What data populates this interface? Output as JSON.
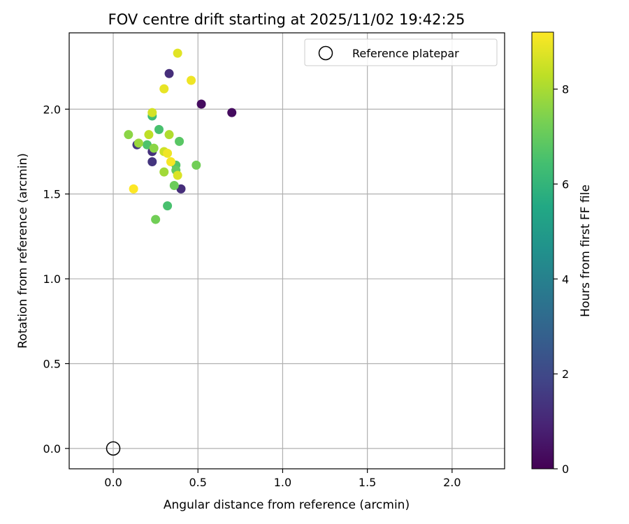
{
  "chart_data": {
    "type": "scatter",
    "title": "FOV centre drift starting at 2025/11/02 19:42:25",
    "xlabel": "Angular distance from reference (arcmin)",
    "ylabel": "Rotation from reference (arcmin)",
    "xlim": [
      -0.26,
      2.31
    ],
    "ylim": [
      -0.12,
      2.45
    ],
    "xticks": [
      0.0,
      0.5,
      1.0,
      1.5,
      2.0
    ],
    "xtick_labels": [
      "0.0",
      "0.5",
      "1.0",
      "1.5",
      "2.0"
    ],
    "yticks": [
      0.0,
      0.5,
      1.0,
      1.5,
      2.0
    ],
    "ytick_labels": [
      "0.0",
      "0.5",
      "1.0",
      "1.5",
      "2.0"
    ],
    "grid": true,
    "legend": {
      "location": "top-right",
      "entries": [
        "Reference platepar"
      ]
    },
    "reference_point": {
      "x": 0.0,
      "y": 0.0,
      "label": "Reference platepar"
    },
    "colorbar": {
      "label": "Hours from first FF file",
      "colormap": "viridis",
      "range": [
        0,
        9.2
      ],
      "ticks": [
        0,
        2,
        4,
        6,
        8
      ],
      "tick_labels": [
        "0",
        "2",
        "4",
        "6",
        "8"
      ]
    },
    "points": [
      {
        "x": 0.52,
        "y": 2.03,
        "hours": 0.3
      },
      {
        "x": 0.7,
        "y": 1.98,
        "hours": 0.3
      },
      {
        "x": 0.33,
        "y": 2.21,
        "hours": 1.2
      },
      {
        "x": 0.14,
        "y": 1.79,
        "hours": 1.5
      },
      {
        "x": 0.23,
        "y": 1.75,
        "hours": 1.3
      },
      {
        "x": 0.23,
        "y": 1.69,
        "hours": 1.4
      },
      {
        "x": 0.4,
        "y": 1.53,
        "hours": 1.2
      },
      {
        "x": 0.23,
        "y": 1.96,
        "hours": 6.3
      },
      {
        "x": 0.27,
        "y": 1.88,
        "hours": 6.5
      },
      {
        "x": 0.2,
        "y": 1.79,
        "hours": 6.6
      },
      {
        "x": 0.39,
        "y": 1.81,
        "hours": 6.8
      },
      {
        "x": 0.37,
        "y": 1.67,
        "hours": 6.7
      },
      {
        "x": 0.32,
        "y": 1.43,
        "hours": 6.5
      },
      {
        "x": 0.37,
        "y": 1.64,
        "hours": 7.0
      },
      {
        "x": 0.36,
        "y": 1.55,
        "hours": 7.1
      },
      {
        "x": 0.49,
        "y": 1.67,
        "hours": 7.2
      },
      {
        "x": 0.25,
        "y": 1.35,
        "hours": 7.2
      },
      {
        "x": 0.09,
        "y": 1.85,
        "hours": 7.6
      },
      {
        "x": 0.15,
        "y": 1.8,
        "hours": 7.8
      },
      {
        "x": 0.24,
        "y": 1.77,
        "hours": 7.6
      },
      {
        "x": 0.3,
        "y": 1.63,
        "hours": 7.9
      },
      {
        "x": 0.33,
        "y": 1.85,
        "hours": 8.1
      },
      {
        "x": 0.21,
        "y": 1.85,
        "hours": 8.3
      },
      {
        "x": 0.3,
        "y": 1.75,
        "hours": 8.5
      },
      {
        "x": 0.38,
        "y": 1.61,
        "hours": 8.7
      },
      {
        "x": 0.23,
        "y": 1.98,
        "hours": 8.6
      },
      {
        "x": 0.3,
        "y": 2.12,
        "hours": 8.9
      },
      {
        "x": 0.38,
        "y": 2.33,
        "hours": 8.8
      },
      {
        "x": 0.46,
        "y": 2.17,
        "hours": 9.0
      },
      {
        "x": 0.32,
        "y": 1.74,
        "hours": 9.0
      },
      {
        "x": 0.34,
        "y": 1.69,
        "hours": 9.1
      },
      {
        "x": 0.12,
        "y": 1.53,
        "hours": 9.2
      }
    ]
  }
}
